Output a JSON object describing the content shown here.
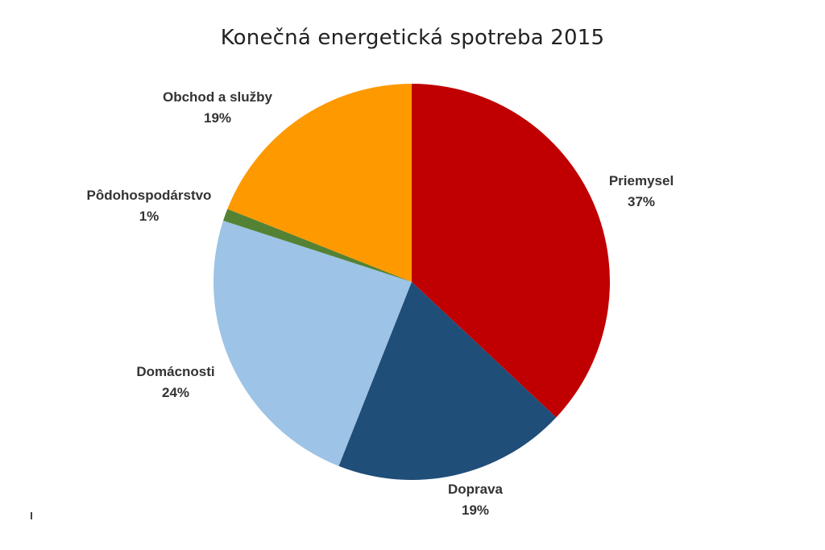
{
  "chart_data": {
    "type": "pie",
    "title": "Konečná energetická spotreba 2015",
    "slices": [
      {
        "name": "Priemysel",
        "value": 37,
        "label": "37%",
        "color": "#C00000"
      },
      {
        "name": "Doprava",
        "value": 19,
        "label": "19%",
        "color": "#1F4E79"
      },
      {
        "name": "Domácnosti",
        "value": 24,
        "label": "24%",
        "color": "#9DC3E6"
      },
      {
        "name": "Pôdohospodárstvo",
        "value": 1,
        "label": "1%",
        "color": "#548235"
      },
      {
        "name": "Obchod a služby",
        "value": 19,
        "label": "19%",
        "color": "#FF9900"
      }
    ],
    "start_angle": "12 o'clock",
    "direction": "clockwise",
    "legend": "none",
    "labels": "outside"
  }
}
